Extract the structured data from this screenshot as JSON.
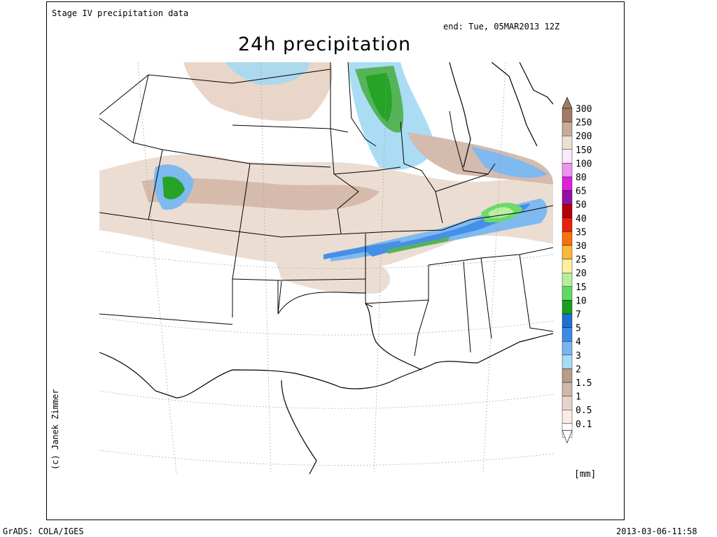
{
  "header": {
    "dataset_title": "Stage IV precipitation data",
    "end_time": "end: Tue, 05MAR2013 12Z",
    "main_title": "24h precipitation"
  },
  "credit": "(c) Janek Zimmer",
  "footer": {
    "software": "GrADS: COLA/IGES",
    "timestamp": "2013-03-06-11:58"
  },
  "legend": {
    "unit": "[mm]",
    "entries": [
      {
        "label": "300",
        "color": "#a07a66"
      },
      {
        "label": "250",
        "color": "#c8aa98"
      },
      {
        "label": "200",
        "color": "#ebe0d4"
      },
      {
        "label": "150",
        "color": "#fde8fc"
      },
      {
        "label": "100",
        "color": "#ef94ee"
      },
      {
        "label": "80",
        "color": "#dd20db"
      },
      {
        "label": "65",
        "color": "#9010a8"
      },
      {
        "label": "50",
        "color": "#b40008"
      },
      {
        "label": "40",
        "color": "#e8200c"
      },
      {
        "label": "35",
        "color": "#f87010"
      },
      {
        "label": "30",
        "color": "#fcb838"
      },
      {
        "label": "25",
        "color": "#fef0a0"
      },
      {
        "label": "20",
        "color": "#b4f09a"
      },
      {
        "label": "15",
        "color": "#64d864"
      },
      {
        "label": "10",
        "color": "#1aa01c"
      },
      {
        "label": "7",
        "color": "#1e70d4"
      },
      {
        "label": "5",
        "color": "#3c8ae8"
      },
      {
        "label": "4",
        "color": "#78b6f0"
      },
      {
        "label": "3",
        "color": "#a6dcf4"
      },
      {
        "label": "2",
        "color": "#b89c8c"
      },
      {
        "label": "1.5",
        "color": "#d2b8aa"
      },
      {
        "label": "1",
        "color": "#e6d4c8"
      },
      {
        "label": "0.5",
        "color": "#f8ece4"
      },
      {
        "label": "0.1",
        "color": "#ffffff"
      }
    ]
  }
}
